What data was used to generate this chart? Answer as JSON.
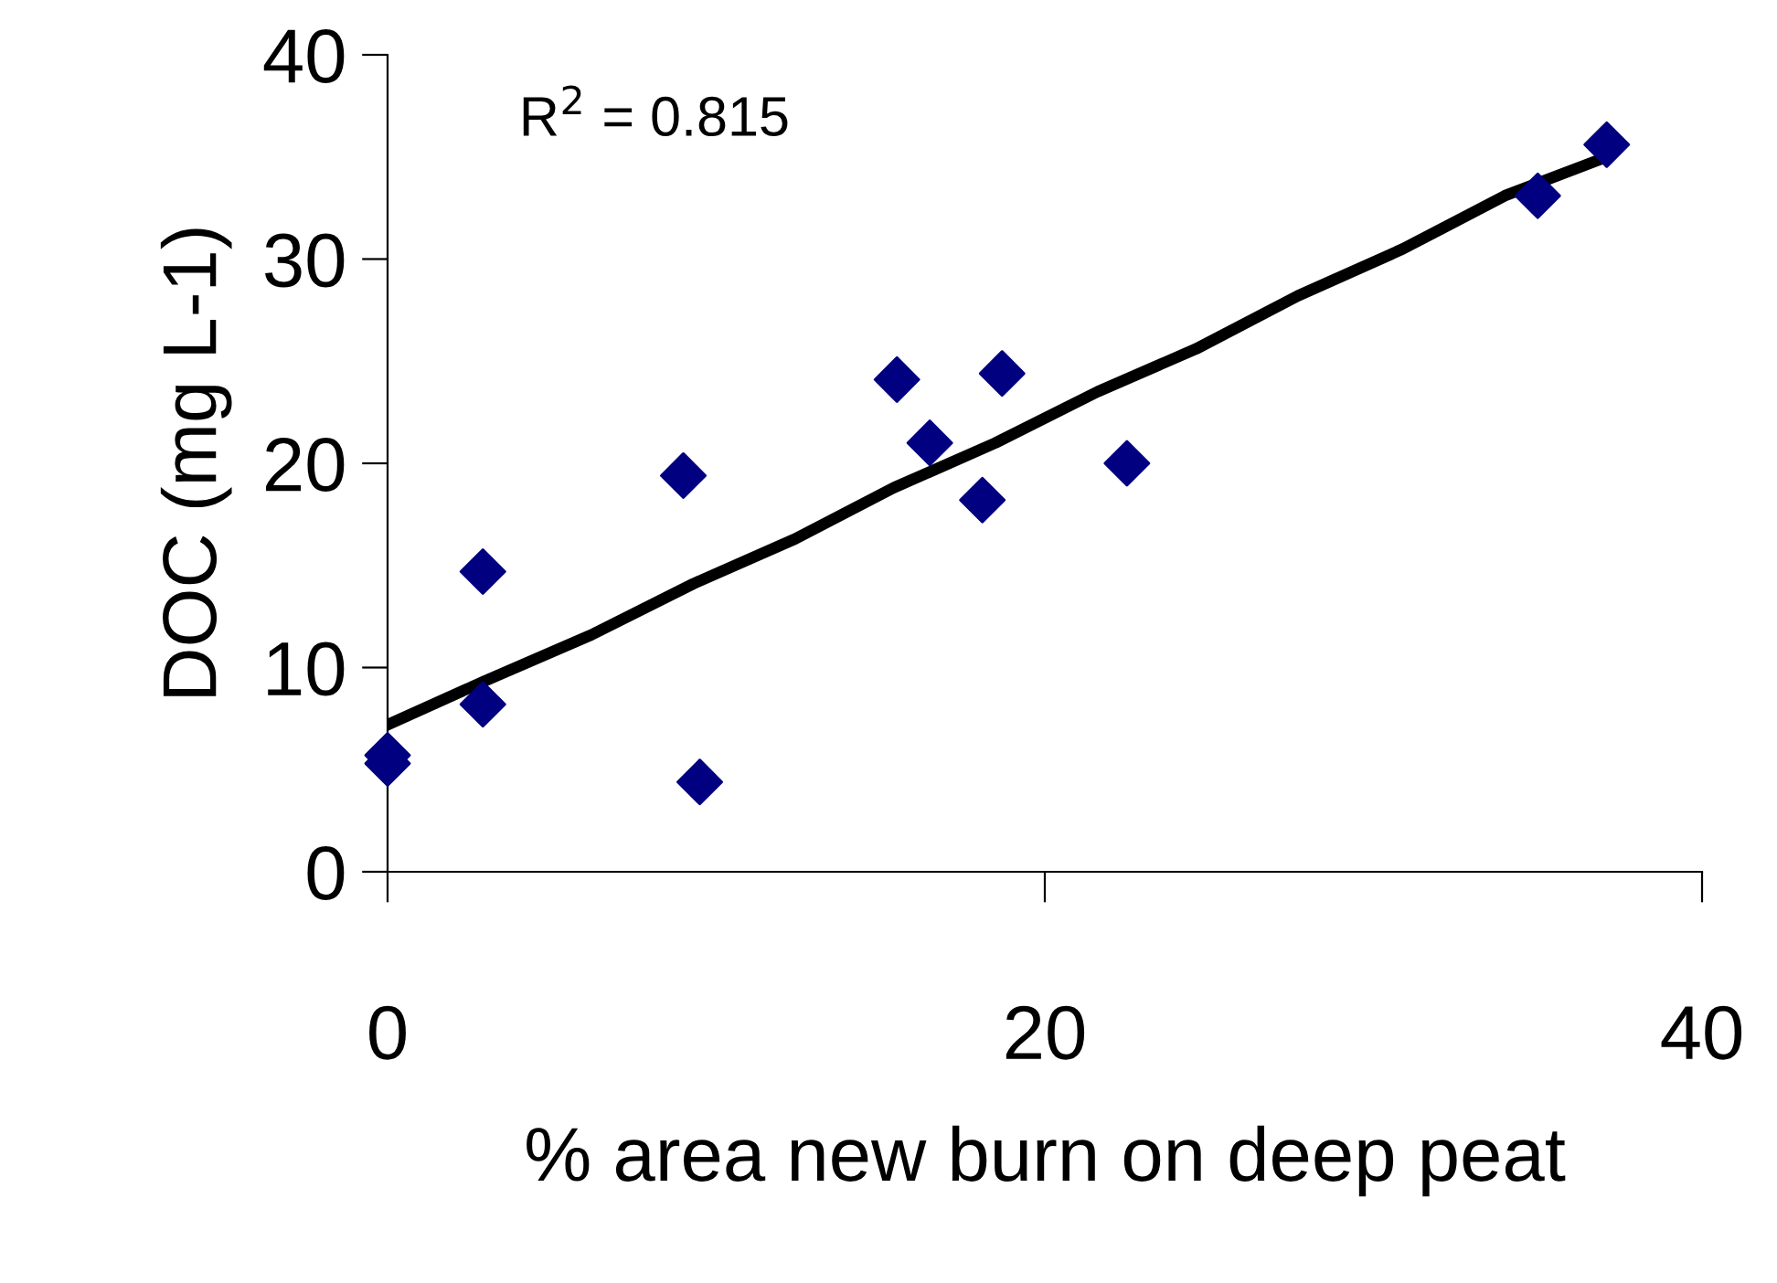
{
  "chart_data": {
    "type": "scatter",
    "xlabel": "% area new burn on deep peat",
    "ylabel": "DOC (mg L-1)",
    "annotations": [
      "R$^{2}$ = 0.815"
    ],
    "xlim": [
      0,
      40
    ],
    "ylim": [
      0,
      40
    ],
    "xticks": [
      0,
      20,
      40
    ],
    "yticks": [
      0,
      10,
      20,
      30,
      40
    ],
    "grid": false,
    "legend": false,
    "series": [
      {
        "marker": "diamond",
        "color": "#000080",
        "x": [
          0,
          0,
          2.9,
          2.9,
          9.0,
          9.5,
          15.5,
          16.5,
          18.1,
          18.7,
          22.5,
          35.0,
          37.1
        ],
        "values": [
          5.7,
          5.3,
          14.7,
          8.2,
          19.4,
          4.4,
          24.1,
          21.0,
          18.2,
          24.4,
          20.0,
          33.1,
          35.6
        ]
      },
      {
        "type": "line",
        "marker": "none",
        "line_style": "solid",
        "color": "#000000",
        "x": [
          0,
          2.9,
          6.2,
          9.3,
          12.4,
          15.4,
          18.5,
          21.6,
          24.6,
          27.7,
          30.9,
          34.0,
          37.1
        ],
        "values": [
          7.2,
          9.3,
          11.6,
          14.1,
          16.3,
          18.8,
          21.0,
          23.5,
          25.6,
          28.2,
          30.5,
          33.1,
          35.0
        ]
      }
    ]
  }
}
